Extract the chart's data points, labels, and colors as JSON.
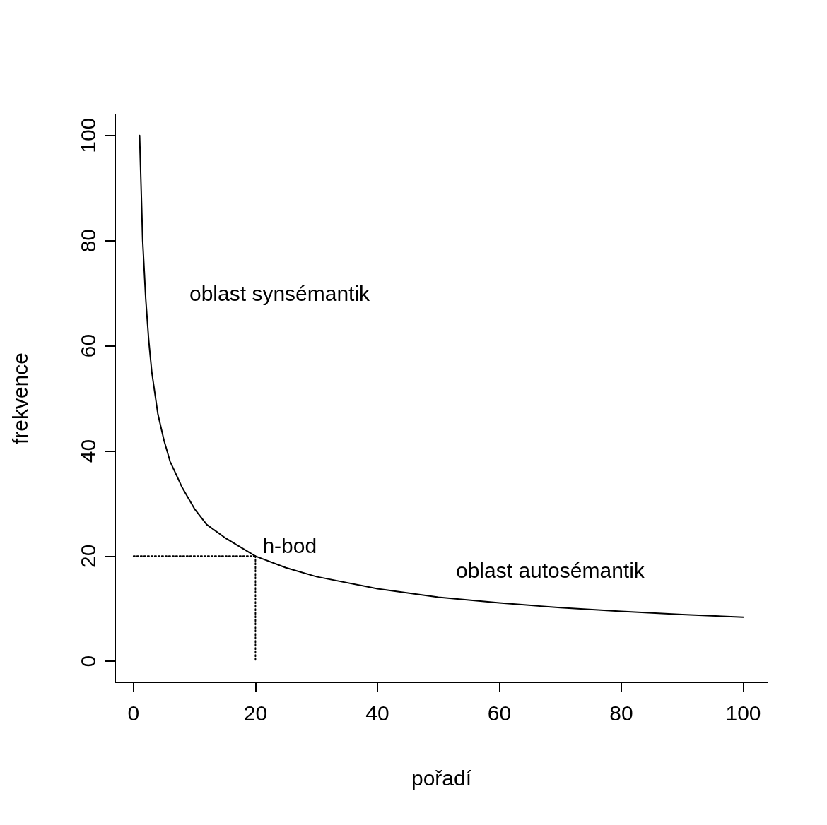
{
  "chart_data": {
    "type": "line",
    "xlabel": "pořadí",
    "ylabel": "frekvence",
    "xlim": [
      -3,
      104
    ],
    "ylim": [
      -4,
      104
    ],
    "xticks": [
      0,
      20,
      40,
      60,
      80,
      100
    ],
    "yticks": [
      0,
      20,
      40,
      60,
      80,
      100
    ],
    "grid": false,
    "marker": "none",
    "series": [
      {
        "color": "#000000",
        "line_style": "solid",
        "x": [
          1,
          1.5,
          2,
          2.5,
          3,
          4,
          5,
          6,
          8,
          10,
          12,
          15,
          20,
          25,
          30,
          40,
          50,
          60,
          70,
          80,
          90,
          100
        ],
        "values": [
          100,
          80,
          69,
          61,
          55,
          47,
          42,
          38,
          33,
          29,
          26,
          23.5,
          20,
          17.8,
          16.1,
          13.8,
          12.2,
          11.1,
          10.2,
          9.5,
          8.9,
          8.4
        ]
      },
      {
        "color": "#000000",
        "line_style": "dotted",
        "x": [
          0,
          20
        ],
        "values": [
          20,
          20
        ]
      },
      {
        "color": "#000000",
        "line_style": "dotted",
        "x": [
          20,
          20
        ],
        "values": [
          20,
          0
        ]
      }
    ],
    "annotations": [
      "oblast synsémantik",
      {
        "text": "h-bod",
        "x": 20,
        "y": 20
      },
      "oblast autosémantik"
    ]
  }
}
